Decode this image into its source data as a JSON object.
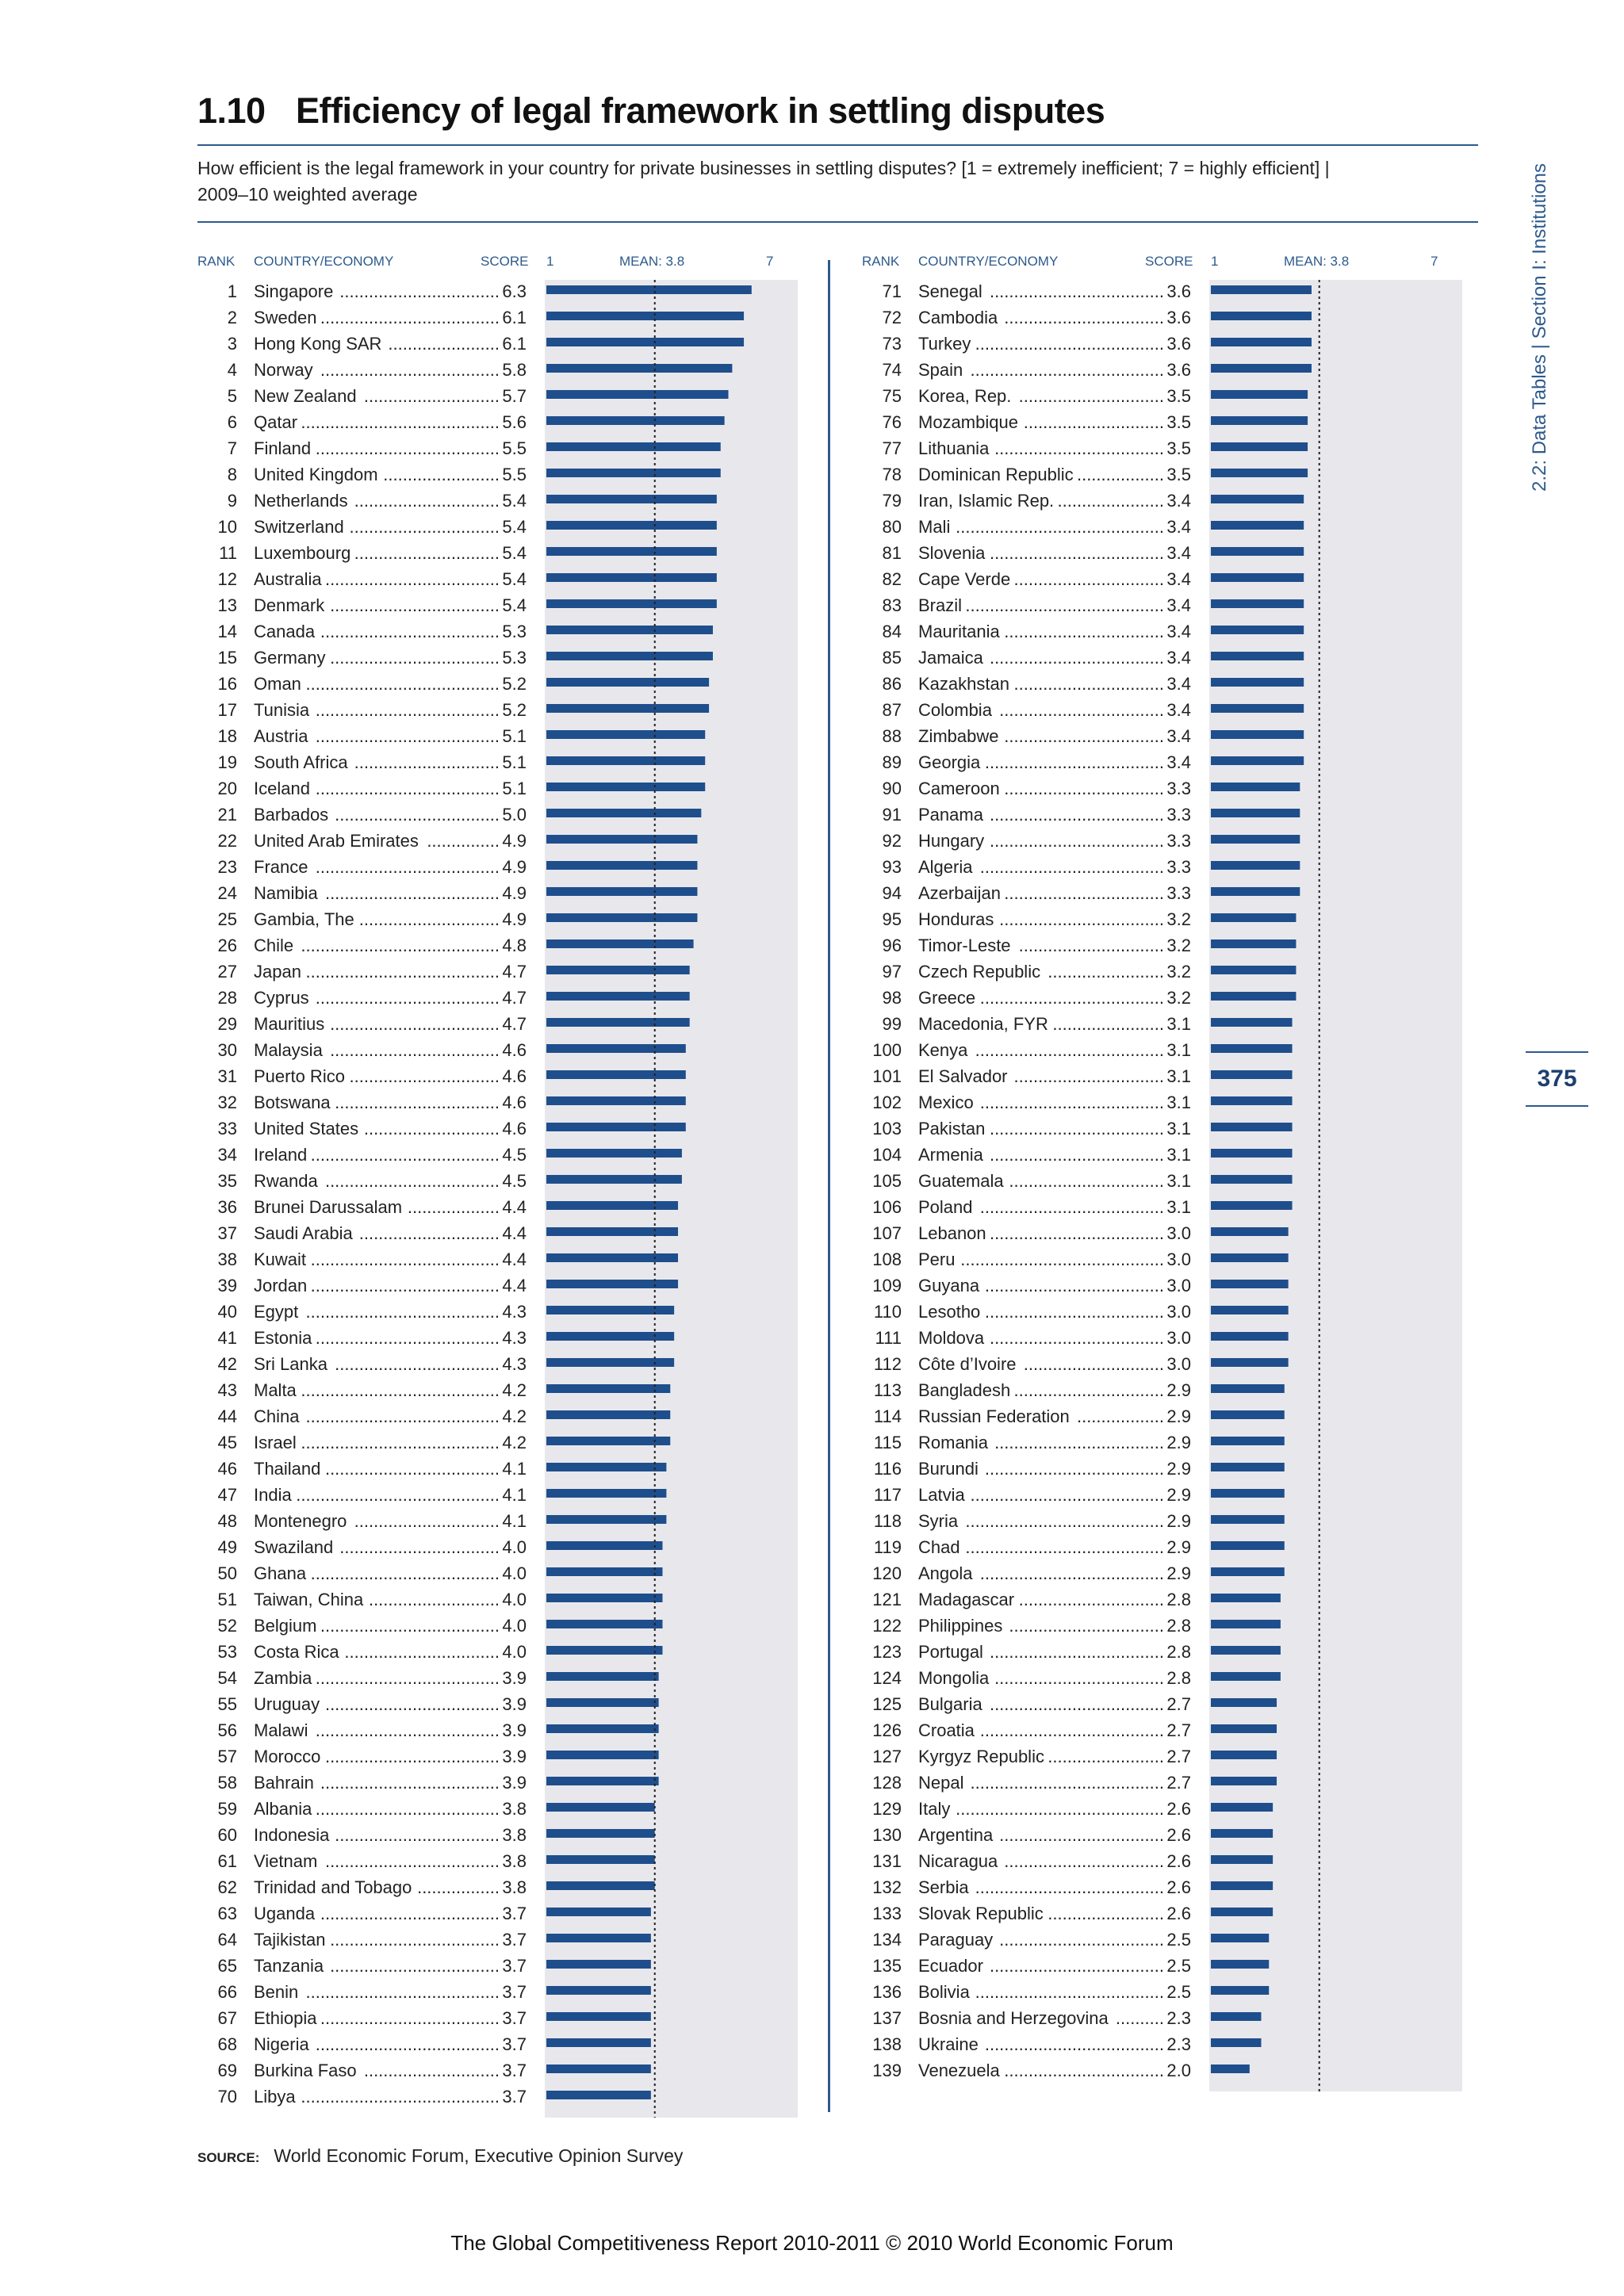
{
  "header": {
    "number": "1.10",
    "title": "Efficiency of legal framework in settling disputes",
    "question_line1": "How efficient is the legal framework in your country for private businesses in settling disputes? [1 = extremely inefficient; 7 = highly efficient] |",
    "question_line2": "2009–10 weighted average"
  },
  "side_tab": "2.2: Data Tables | Section I: Institutions",
  "page_number": "375",
  "column_headers": {
    "rank": "RANK",
    "country": "COUNTRY/ECONOMY",
    "score": "SCORE",
    "axis_min": "1",
    "mean": "MEAN: 3.8",
    "axis_max": "7"
  },
  "source": {
    "label": "SOURCE:",
    "text": "World Economic Forum, Executive Opinion Survey"
  },
  "footer": "The Global Competitiveness Report 2010-2011 © 2010 World Economic Forum",
  "colors": {
    "bar": "#1f4e8c",
    "band": "#e8e8ec",
    "accent": "#2d5a8c",
    "mean_line": "#222222"
  },
  "chart_data": {
    "type": "bar",
    "orientation": "horizontal",
    "xlim": [
      1,
      7
    ],
    "mean": 3.8,
    "grid": false,
    "ranks": [
      1,
      2,
      3,
      4,
      5,
      6,
      7,
      8,
      9,
      10,
      11,
      12,
      13,
      14,
      15,
      16,
      17,
      18,
      19,
      20,
      21,
      22,
      23,
      24,
      25,
      26,
      27,
      28,
      29,
      30,
      31,
      32,
      33,
      34,
      35,
      36,
      37,
      38,
      39,
      40,
      41,
      42,
      43,
      44,
      45,
      46,
      47,
      48,
      49,
      50,
      51,
      52,
      53,
      54,
      55,
      56,
      57,
      58,
      59,
      60,
      61,
      62,
      63,
      64,
      65,
      66,
      67,
      68,
      69,
      70,
      71,
      72,
      73,
      74,
      75,
      76,
      77,
      78,
      79,
      80,
      81,
      82,
      83,
      84,
      85,
      86,
      87,
      88,
      89,
      90,
      91,
      92,
      93,
      94,
      95,
      96,
      97,
      98,
      99,
      100,
      101,
      102,
      103,
      104,
      105,
      106,
      107,
      108,
      109,
      110,
      111,
      112,
      113,
      114,
      115,
      116,
      117,
      118,
      119,
      120,
      121,
      122,
      123,
      124,
      125,
      126,
      127,
      128,
      129,
      130,
      131,
      132,
      133,
      134,
      135,
      136,
      137,
      138,
      139
    ],
    "categories": [
      "Singapore",
      "Sweden",
      "Hong Kong SAR",
      "Norway",
      "New Zealand",
      "Qatar",
      "Finland",
      "United Kingdom",
      "Netherlands",
      "Switzerland",
      "Luxembourg",
      "Australia",
      "Denmark",
      "Canada",
      "Germany",
      "Oman",
      "Tunisia",
      "Austria",
      "South Africa",
      "Iceland",
      "Barbados",
      "United Arab Emirates",
      "France",
      "Namibia",
      "Gambia, The",
      "Chile",
      "Japan",
      "Cyprus",
      "Mauritius",
      "Malaysia",
      "Puerto Rico",
      "Botswana",
      "United States",
      "Ireland",
      "Rwanda",
      "Brunei Darussalam",
      "Saudi Arabia",
      "Kuwait",
      "Jordan",
      "Egypt",
      "Estonia",
      "Sri Lanka",
      "Malta",
      "China",
      "Israel",
      "Thailand",
      "India",
      "Montenegro",
      "Swaziland",
      "Ghana",
      "Taiwan, China",
      "Belgium",
      "Costa Rica",
      "Zambia",
      "Uruguay",
      "Malawi",
      "Morocco",
      "Bahrain",
      "Albania",
      "Indonesia",
      "Vietnam",
      "Trinidad and Tobago",
      "Uganda",
      "Tajikistan",
      "Tanzania",
      "Benin",
      "Ethiopia",
      "Nigeria",
      "Burkina Faso",
      "Libya",
      "Senegal",
      "Cambodia",
      "Turkey",
      "Spain",
      "Korea, Rep.",
      "Mozambique",
      "Lithuania",
      "Dominican Republic",
      "Iran, Islamic Rep.",
      "Mali",
      "Slovenia",
      "Cape Verde",
      "Brazil",
      "Mauritania",
      "Jamaica",
      "Kazakhstan",
      "Colombia",
      "Zimbabwe",
      "Georgia",
      "Cameroon",
      "Panama",
      "Hungary",
      "Algeria",
      "Azerbaijan",
      "Honduras",
      "Timor-Leste",
      "Czech Republic",
      "Greece",
      "Macedonia, FYR",
      "Kenya",
      "El Salvador",
      "Mexico",
      "Pakistan",
      "Armenia",
      "Guatemala",
      "Poland",
      "Lebanon",
      "Peru",
      "Guyana",
      "Lesotho",
      "Moldova",
      "Côte d’Ivoire",
      "Bangladesh",
      "Russian Federation",
      "Romania",
      "Burundi",
      "Latvia",
      "Syria",
      "Chad",
      "Angola",
      "Madagascar",
      "Philippines",
      "Portugal",
      "Mongolia",
      "Bulgaria",
      "Croatia",
      "Kyrgyz Republic",
      "Nepal",
      "Italy",
      "Argentina",
      "Nicaragua",
      "Serbia",
      "Slovak Republic",
      "Paraguay",
      "Ecuador",
      "Bolivia",
      "Bosnia and Herzegovina",
      "Ukraine",
      "Venezuela"
    ],
    "values": [
      6.3,
      6.1,
      6.1,
      5.8,
      5.7,
      5.6,
      5.5,
      5.5,
      5.4,
      5.4,
      5.4,
      5.4,
      5.4,
      5.3,
      5.3,
      5.2,
      5.2,
      5.1,
      5.1,
      5.1,
      5.0,
      4.9,
      4.9,
      4.9,
      4.9,
      4.8,
      4.7,
      4.7,
      4.7,
      4.6,
      4.6,
      4.6,
      4.6,
      4.5,
      4.5,
      4.4,
      4.4,
      4.4,
      4.4,
      4.3,
      4.3,
      4.3,
      4.2,
      4.2,
      4.2,
      4.1,
      4.1,
      4.1,
      4.0,
      4.0,
      4.0,
      4.0,
      4.0,
      3.9,
      3.9,
      3.9,
      3.9,
      3.9,
      3.8,
      3.8,
      3.8,
      3.8,
      3.7,
      3.7,
      3.7,
      3.7,
      3.7,
      3.7,
      3.7,
      3.7,
      3.6,
      3.6,
      3.6,
      3.6,
      3.5,
      3.5,
      3.5,
      3.5,
      3.4,
      3.4,
      3.4,
      3.4,
      3.4,
      3.4,
      3.4,
      3.4,
      3.4,
      3.4,
      3.4,
      3.3,
      3.3,
      3.3,
      3.3,
      3.3,
      3.2,
      3.2,
      3.2,
      3.2,
      3.1,
      3.1,
      3.1,
      3.1,
      3.1,
      3.1,
      3.1,
      3.1,
      3.0,
      3.0,
      3.0,
      3.0,
      3.0,
      3.0,
      2.9,
      2.9,
      2.9,
      2.9,
      2.9,
      2.9,
      2.9,
      2.9,
      2.8,
      2.8,
      2.8,
      2.8,
      2.7,
      2.7,
      2.7,
      2.7,
      2.6,
      2.6,
      2.6,
      2.6,
      2.6,
      2.5,
      2.5,
      2.5,
      2.3,
      2.3,
      2.0
    ]
  }
}
